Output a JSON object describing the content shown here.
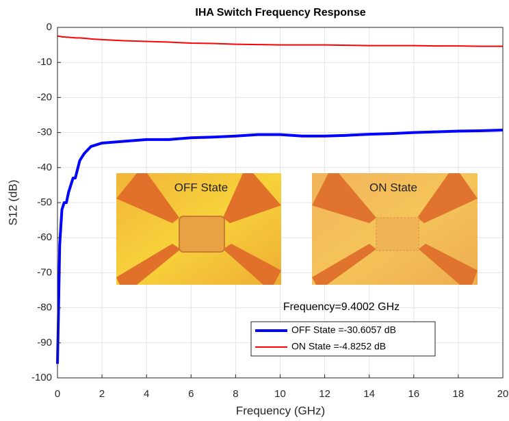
{
  "chart_data": {
    "type": "line",
    "title": "IHA Switch Frequency Response",
    "x_label": "Frequency (GHz)",
    "y_label": "S12 (dB)",
    "x": [
      0,
      0.05,
      0.1,
      0.15,
      0.2,
      0.3,
      0.4,
      0.5,
      0.6,
      0.7,
      0.8,
      1.0,
      1.2,
      1.5,
      2,
      3,
      4,
      5,
      6,
      7,
      8,
      9,
      10,
      11,
      12,
      13,
      14,
      15,
      16,
      17,
      18,
      19,
      20
    ],
    "series": [
      {
        "name": "OFF State =-30.6057 dB",
        "color": "#0000ff",
        "width": 4,
        "values": [
          -96,
          -80,
          -62,
          -57,
          -52,
          -50,
          -50,
          -47,
          -45,
          -43,
          -43,
          -38,
          -36,
          -34,
          -33,
          -32.5,
          -32,
          -32,
          -31.5,
          -31.3,
          -31,
          -30.6,
          -30.6,
          -31,
          -31,
          -30.8,
          -30.5,
          -30.3,
          -30,
          -29.8,
          -29.6,
          -29.5,
          -29.3
        ]
      },
      {
        "name": "ON State =-4.8252 dB",
        "color": "#ff0000",
        "width": 2,
        "values": [
          -2.5,
          -2.5,
          -2.6,
          -2.6,
          -2.7,
          -2.7,
          -2.8,
          -2.8,
          -2.9,
          -2.9,
          -3,
          -3,
          -3.1,
          -3.3,
          -3.5,
          -3.8,
          -4,
          -4.2,
          -4.5,
          -4.6,
          -4.8,
          -4.9,
          -5,
          -5,
          -5,
          -5.1,
          -5.2,
          -5.2,
          -5.2,
          -5.3,
          -5.3,
          -5.4,
          -5.4
        ]
      }
    ],
    "xlim": [
      0,
      20
    ],
    "xticks": [
      0,
      2,
      4,
      6,
      8,
      10,
      12,
      14,
      16,
      18,
      20
    ],
    "ylim": [
      -100,
      0
    ],
    "yticks": [
      -100,
      -90,
      -80,
      -70,
      -60,
      -50,
      -40,
      -30,
      -20,
      -10,
      0
    ],
    "grid": true,
    "annotation": "Frequency=9.4002 GHz",
    "inset_labels": [
      "OFF State",
      "ON State"
    ]
  }
}
